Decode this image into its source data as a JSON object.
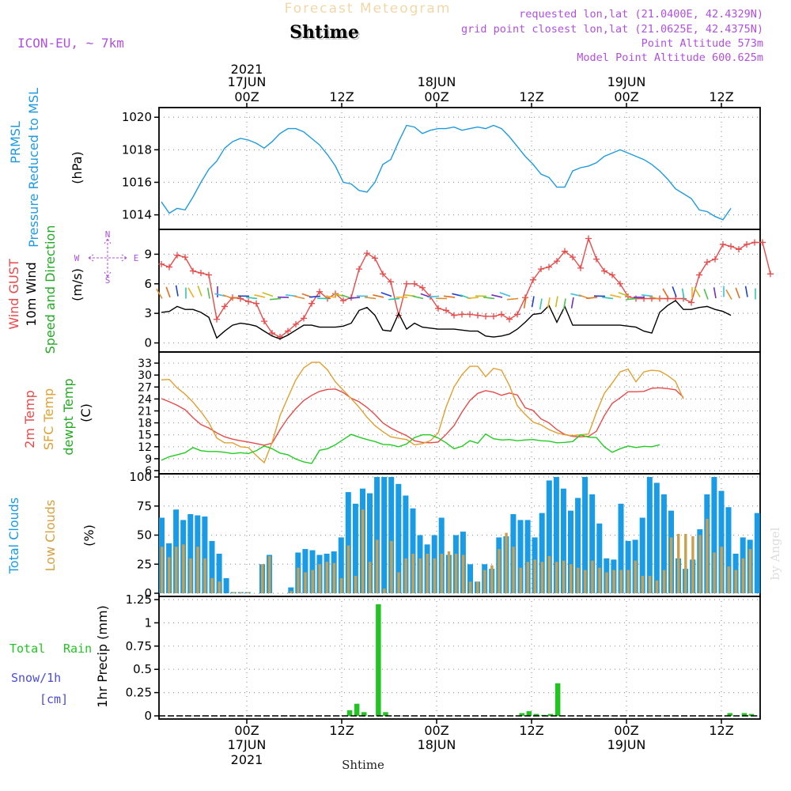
{
  "header": {
    "title": "Forecast Meteogram",
    "location": "Shtime",
    "model": "ICON-EU, ~ 7km",
    "requested": "requested lon,lat (21.0400E, 42.4329N)",
    "grid_point": "grid point closest lon,lat (21.0625E, 42.4375N)",
    "point_alt": "Point Altitude 573m",
    "model_alt": "Model Point Altitude 600.625m",
    "bottom_location": "Shtime",
    "watermark": "by Angel"
  },
  "colors": {
    "pressure": "#1e9be0",
    "gust": "#e84a4a",
    "wind": "#000000",
    "t2m": "#e84a4a",
    "sfc": "#e0a030",
    "dewpt": "#22cc22",
    "total_clouds": "#1a9be6",
    "low_clouds": "#c8a050",
    "rain": "#22c422",
    "snow": "#4a4ae0",
    "purple": "#b050e0"
  },
  "time_axis": {
    "top": [
      {
        "x": 6,
        "date": "17JUN",
        "hour": "00Z",
        "year": "2021"
      },
      {
        "x": 18,
        "date": "",
        "hour": "12Z",
        "year": ""
      },
      {
        "x": 30,
        "date": "18JUN",
        "hour": "00Z",
        "year": ""
      },
      {
        "x": 42,
        "date": "",
        "hour": "12Z",
        "year": ""
      },
      {
        "x": 54,
        "date": "19JUN",
        "hour": "00Z",
        "year": ""
      },
      {
        "x": 66,
        "date": "",
        "hour": "12Z",
        "year": ""
      }
    ]
  },
  "panels": {
    "pressure": {
      "l1": "PRMSL",
      "l2": "Pressure Reduced to MSL",
      "unit": "(hPa)"
    },
    "wind": {
      "l1": "Wind GUST",
      "l2": "10m Wind",
      "l3": "Speed and Direction",
      "unit": "(m/s)",
      "compass": {
        "n": "N",
        "s": "S",
        "w": "W",
        "e": "E"
      }
    },
    "temp": {
      "l1": "2m Temp",
      "l2": "SFC Temp",
      "l3": "dewpt Temp",
      "unit": "(C)"
    },
    "clouds": {
      "l1": "Total Clouds",
      "l2": "Low Clouds",
      "unit": "(%)"
    },
    "precip": {
      "l1": "Total",
      "l1b": "Rain",
      "l2": "Snow/1h",
      "l3": "[cm]",
      "unit": "1hr Precip (mm)"
    }
  },
  "chart_data": [
    {
      "type": "line",
      "name": "pressure",
      "ylim": [
        1013.3,
        1020.4
      ],
      "yticks": [
        1014,
        1016,
        1018,
        1020
      ],
      "series": [
        {
          "name": "PRMSL",
          "values": [
            1014.8,
            1014.1,
            1014.4,
            1014.3,
            1015.1,
            1016.0,
            1016.8,
            1017.3,
            1018.1,
            1018.5,
            1018.7,
            1018.6,
            1018.4,
            1018.1,
            1018.5,
            1019.0,
            1019.3,
            1019.3,
            1019.1,
            1018.7,
            1018.3,
            1017.7,
            1017.0,
            1016.0,
            1015.9,
            1015.5,
            1015.4,
            1016.0,
            1017.1,
            1017.4,
            1018.5,
            1019.5,
            1019.4,
            1019.0,
            1019.2,
            1019.3,
            1019.3,
            1019.4,
            1019.2,
            1019.3,
            1019.4,
            1019.3,
            1019.5,
            1019.3,
            1018.8,
            1018.2,
            1017.6,
            1017.1,
            1016.5,
            1016.3,
            1015.7,
            1015.7,
            1016.7,
            1016.9,
            1017.0,
            1017.2,
            1017.6,
            1017.8,
            1018.0,
            1017.8,
            1017.6,
            1017.4,
            1017.1,
            1016.7,
            1016.2,
            1015.6,
            1015.3,
            1015.0,
            1014.3,
            1014.2,
            1013.9,
            1013.7,
            1014.4
          ]
        }
      ]
    },
    {
      "type": "line",
      "name": "wind",
      "ylim": [
        -0.6,
        11.2
      ],
      "yticks": [
        0,
        3,
        6,
        9
      ],
      "series": [
        {
          "name": "Wind GUST",
          "values": [
            8.0,
            7.7,
            8.9,
            8.7,
            7.3,
            7.1,
            6.9,
            2.4,
            3.7,
            4.6,
            4.5,
            4.2,
            4.0,
            2.2,
            1.0,
            0.6,
            1.2,
            1.9,
            2.5,
            4.0,
            5.2,
            4.5,
            5.0,
            4.3,
            4.6,
            7.5,
            9.1,
            8.6,
            7.0,
            6.2,
            2.8,
            6.0,
            6.0,
            5.6,
            4.7,
            3.5,
            3.3,
            2.8,
            2.9,
            2.9,
            2.8,
            2.7,
            2.7,
            2.9,
            2.4,
            2.9,
            4.6,
            6.4,
            7.5,
            7.7,
            8.3,
            9.3,
            8.7,
            7.6,
            10.6,
            8.5,
            7.3,
            6.9,
            6.0,
            4.7,
            4.5,
            4.5,
            4.5,
            4.5,
            4.5,
            4.5,
            4.5,
            4.1,
            6.9,
            8.2,
            8.5,
            10.0,
            9.8,
            9.5,
            10.0,
            10.2,
            10.2,
            7.0
          ]
        },
        {
          "name": "10m Wind",
          "values": [
            3.1,
            3.2,
            3.7,
            3.4,
            3.4,
            3.1,
            2.6,
            0.5,
            1.2,
            1.8,
            2.0,
            1.9,
            1.7,
            1.2,
            0.7,
            0.4,
            0.8,
            1.3,
            1.8,
            1.8,
            1.6,
            1.6,
            1.6,
            1.7,
            2.0,
            3.3,
            3.6,
            2.8,
            1.3,
            1.2,
            3.0,
            1.4,
            2.0,
            1.6,
            1.5,
            1.4,
            1.4,
            1.4,
            1.3,
            1.2,
            1.2,
            0.7,
            0.6,
            0.7,
            0.9,
            1.4,
            2.1,
            2.9,
            3.0,
            3.8,
            2.1,
            3.7,
            1.8,
            1.8,
            1.8,
            1.8,
            1.8,
            1.8,
            1.8,
            1.7,
            1.6,
            1.2,
            1.0,
            3.1,
            3.8,
            4.3,
            3.4,
            3.4,
            3.6,
            3.7,
            3.4,
            3.2,
            2.8
          ]
        }
      ]
    },
    {
      "type": "line",
      "name": "temperature",
      "ylim": [
        6,
        35
      ],
      "yticks": [
        6,
        9,
        12,
        15,
        18,
        21,
        24,
        27,
        30,
        33
      ],
      "series": [
        {
          "name": "2m Temp",
          "values": [
            24.1,
            23.3,
            22.4,
            21.3,
            19.3,
            17.6,
            16.7,
            15.5,
            14.5,
            13.9,
            13.5,
            13.2,
            12.8,
            12.4,
            12.9,
            16.3,
            19.2,
            21.6,
            23.6,
            24.9,
            25.9,
            26.4,
            26.5,
            25.6,
            24.2,
            23.3,
            21.9,
            20.1,
            18.0,
            16.7,
            15.7,
            14.8,
            13.5,
            13.1,
            13.0,
            13.2,
            15.1,
            17.3,
            20.7,
            23.6,
            25.4,
            26.1,
            25.7,
            24.9,
            25.5,
            25.0,
            21.8,
            21.1,
            19.0,
            18.0,
            16.3,
            15.1,
            14.6,
            14.5,
            14.6,
            15.9,
            19.8,
            22.9,
            24.3,
            25.8,
            25.8,
            25.9,
            26.7,
            26.8,
            26.6,
            26.3,
            24.4
          ]
        },
        {
          "name": "SFC Temp",
          "values": [
            28.8,
            28.9,
            26.8,
            25.2,
            23.2,
            20.8,
            18.1,
            14.2,
            13.0,
            13.0,
            12.0,
            11.8,
            9.8,
            8.0,
            13.1,
            19.8,
            24.4,
            28.8,
            31.8,
            33.2,
            33.2,
            31.3,
            28.3,
            26.2,
            24.1,
            21.9,
            19.4,
            17.3,
            15.8,
            14.5,
            14.1,
            13.8,
            12.5,
            12.8,
            13.5,
            15.5,
            22.0,
            27.0,
            30.1,
            32.2,
            32.2,
            29.6,
            31.7,
            31.2,
            27.4,
            22.3,
            20.1,
            18.2,
            17.5,
            16.3,
            15.5,
            15.0,
            14.8,
            15.0,
            15.2,
            20.6,
            25.4,
            28.0,
            30.8,
            31.5,
            28.3,
            30.8,
            31.2,
            31.0,
            29.9,
            28.4,
            24.0
          ]
        },
        {
          "name": "dewpt Temp",
          "values": [
            8.6,
            9.5,
            10.0,
            10.5,
            11.8,
            11.0,
            10.8,
            10.8,
            10.6,
            10.3,
            10.5,
            10.3,
            11.0,
            12.2,
            11.5,
            10.4,
            10.0,
            8.9,
            8.2,
            7.8,
            11.1,
            11.5,
            12.5,
            13.8,
            15.1,
            14.4,
            13.8,
            13.3,
            12.6,
            12.5,
            12.0,
            12.7,
            14.3,
            15.0,
            15.0,
            14.2,
            13.0,
            11.5,
            12.1,
            13.5,
            12.9,
            15.2,
            14.0,
            13.7,
            13.8,
            13.5,
            13.7,
            13.8,
            13.5,
            13.4,
            13.0,
            13.1,
            13.3,
            15.0,
            14.4,
            14.3,
            12.0,
            10.6,
            11.5,
            12.2,
            11.8,
            12.1,
            12.0,
            12.5
          ]
        }
      ]
    },
    {
      "type": "bar",
      "name": "clouds",
      "ylim": [
        0,
        100
      ],
      "yticks": [
        0,
        25,
        50,
        75,
        100
      ],
      "series": [
        {
          "name": "Total Clouds",
          "values": [
            65,
            43,
            72,
            63,
            68,
            67,
            66,
            45,
            34,
            13,
            1,
            1,
            1,
            0,
            25,
            33,
            0,
            0,
            5,
            35,
            38,
            37,
            33,
            34,
            36,
            48,
            87,
            77,
            90,
            86,
            100,
            100,
            100,
            94,
            84,
            73,
            50,
            42,
            50,
            65,
            33,
            50,
            53,
            25,
            10,
            25,
            21,
            48,
            49,
            68,
            63,
            63,
            48,
            69,
            97,
            100,
            90,
            71,
            82,
            100,
            85,
            60,
            30,
            29,
            77,
            45,
            46,
            65,
            100,
            95,
            85,
            71,
            30,
            21,
            29,
            55,
            85,
            100,
            88,
            74,
            34,
            48,
            46,
            69
          ]
        },
        {
          "name": "Low Clouds",
          "values": [
            40,
            31,
            40,
            42,
            30,
            40,
            30,
            13,
            10,
            0,
            1,
            1,
            1,
            0,
            25,
            32,
            0,
            0,
            2,
            22,
            18,
            20,
            25,
            27,
            26,
            13,
            41,
            15,
            72,
            27,
            46,
            4,
            45,
            18,
            30,
            34,
            30,
            34,
            30,
            34,
            36,
            34,
            33,
            10,
            10,
            20,
            24,
            38,
            52,
            40,
            22,
            27,
            29,
            27,
            32,
            27,
            28,
            25,
            22,
            20,
            28,
            22,
            18,
            20,
            20,
            20,
            28,
            15,
            15,
            11,
            20,
            48,
            51,
            51,
            49,
            50,
            64,
            35,
            40,
            23,
            20,
            30,
            38
          ]
        }
      ]
    },
    {
      "type": "bar",
      "name": "precipitation",
      "ylim": [
        0,
        1.25
      ],
      "yticks": [
        0,
        0.25,
        0.5,
        0.75,
        1,
        1.25
      ],
      "series": [
        {
          "name": "1hr Precip",
          "values": [
            0,
            0,
            0,
            0,
            0,
            0,
            0,
            0,
            0,
            0,
            0,
            0,
            0,
            0,
            0,
            0,
            0,
            0,
            0,
            0,
            0,
            0,
            0,
            0,
            0,
            0,
            0.06,
            0.13,
            0.04,
            0,
            1.2,
            0.04,
            0,
            0,
            0,
            0,
            0,
            0,
            0,
            0,
            0,
            0,
            0,
            0,
            0,
            0,
            0,
            0,
            0,
            0,
            0.03,
            0.05,
            0.02,
            0.01,
            0.02,
            0.35,
            0,
            0,
            0,
            0,
            0,
            0,
            0,
            0,
            0,
            0,
            0,
            0,
            0,
            0,
            0,
            0,
            0,
            0,
            0,
            0,
            0,
            0,
            0,
            0.03,
            0,
            0.03,
            0.02
          ]
        }
      ]
    }
  ]
}
